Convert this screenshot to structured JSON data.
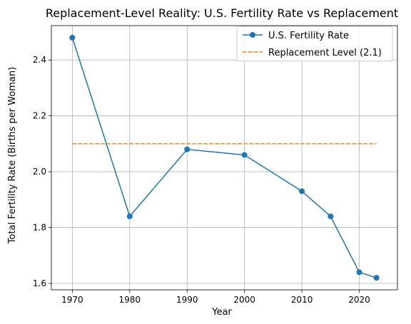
{
  "chart_data": {
    "type": "line",
    "title": "Replacement-Level Reality: U.S. Fertility Rate vs Replacement",
    "xlabel": "Year",
    "ylabel": "Total Fertility Rate (Births per Woman)",
    "xlim": [
      1966.35,
      2026.65
    ],
    "ylim": [
      1.577,
      2.523
    ],
    "x_ticks": [
      1970,
      1980,
      1990,
      2000,
      2010,
      2020
    ],
    "y_ticks": [
      1.6,
      1.8,
      2.0,
      2.2,
      2.4
    ],
    "y_tick_labels": [
      "1.6",
      "1.8",
      "2.0",
      "2.2",
      "2.4"
    ],
    "grid": true,
    "legend_position": "top-right",
    "series": [
      {
        "name": "U.S. Fertility Rate",
        "style": "solid-with-circle-markers",
        "color": "#1f77b4",
        "x": [
          1970,
          1980,
          1990,
          2000,
          2010,
          2015,
          2020,
          2023
        ],
        "values": [
          2.48,
          1.84,
          2.08,
          2.06,
          1.93,
          1.84,
          1.64,
          1.62
        ]
      },
      {
        "name": "Replacement Level (2.1)",
        "style": "dashed",
        "color": "#ff7f0e",
        "x": [
          1970,
          2023
        ],
        "values": [
          2.1,
          2.1
        ]
      }
    ]
  }
}
